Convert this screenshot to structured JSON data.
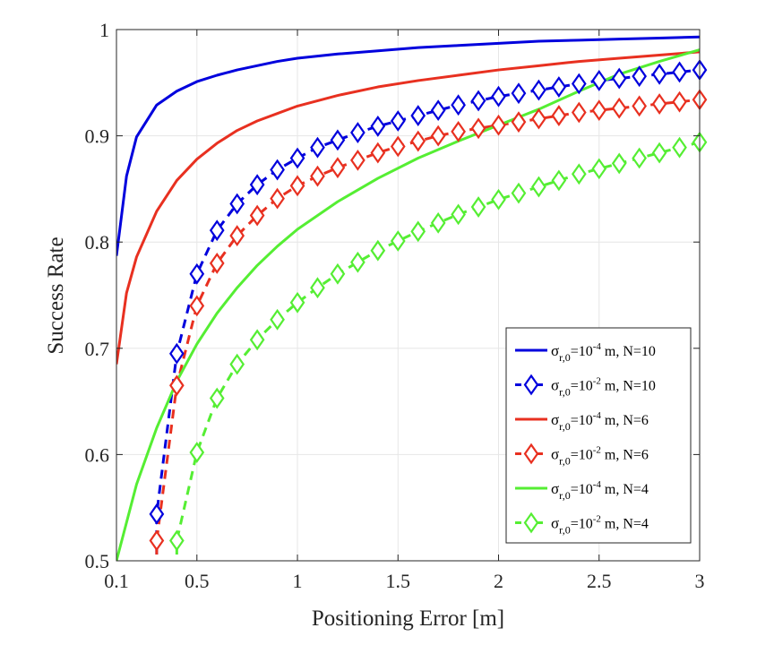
{
  "chart_data": {
    "type": "line",
    "title": "",
    "xlabel": "Positioning Error [m]",
    "ylabel": "Success Rate",
    "xlim": [
      0.1,
      3
    ],
    "ylim": [
      0.5,
      1
    ],
    "xticks": [
      0.1,
      0.5,
      1,
      1.5,
      2,
      2.5,
      3
    ],
    "xtick_labels": [
      "0.1",
      "0.5",
      "1",
      "1.5",
      "2",
      "2.5",
      "3"
    ],
    "yticks": [
      0.5,
      0.6,
      0.7,
      0.8,
      0.9,
      1
    ],
    "ytick_labels": [
      "0.5",
      "0.6",
      "0.7",
      "0.8",
      "0.9",
      "1"
    ],
    "grid": true,
    "legend_position": "bottom-right",
    "series": [
      {
        "name": "σr,0=10-4 m, N=10",
        "legend": {
          "sigma": "σ",
          "sub": "r,0",
          "base": "=10",
          "exp": "-4",
          "rest": " m, N=10"
        },
        "color": "#0000DD",
        "style": "solid",
        "marker": "none",
        "x": [
          0.1,
          0.15,
          0.2,
          0.3,
          0.4,
          0.5,
          0.6,
          0.7,
          0.8,
          0.9,
          1.0,
          1.2,
          1.4,
          1.6,
          1.8,
          2.0,
          2.2,
          2.4,
          2.6,
          2.8,
          3.0
        ],
        "y": [
          0.787,
          0.862,
          0.899,
          0.929,
          0.942,
          0.951,
          0.957,
          0.962,
          0.966,
          0.97,
          0.973,
          0.977,
          0.98,
          0.983,
          0.985,
          0.987,
          0.989,
          0.99,
          0.991,
          0.992,
          0.993
        ]
      },
      {
        "name": "σr,0=10-2 m, N=10",
        "legend": {
          "sigma": "σ",
          "sub": "r,0",
          "base": "=10",
          "exp": "-2",
          "rest": " m, N=10"
        },
        "color": "#0000DD",
        "style": "dashed",
        "marker": "diamond",
        "x": [
          0.3,
          0.4,
          0.5,
          0.6,
          0.7,
          0.8,
          0.9,
          1.0,
          1.1,
          1.2,
          1.3,
          1.4,
          1.5,
          1.6,
          1.7,
          1.8,
          1.9,
          2.0,
          2.1,
          2.2,
          2.3,
          2.4,
          2.5,
          2.6,
          2.7,
          2.8,
          2.9,
          3.0
        ],
        "y": [
          0.544,
          0.695,
          0.77,
          0.811,
          0.836,
          0.854,
          0.868,
          0.879,
          0.889,
          0.896,
          0.903,
          0.909,
          0.914,
          0.919,
          0.924,
          0.929,
          0.933,
          0.937,
          0.94,
          0.943,
          0.946,
          0.949,
          0.952,
          0.954,
          0.956,
          0.958,
          0.96,
          0.962
        ]
      },
      {
        "name": "σr,0=10-4 m, N=6",
        "legend": {
          "sigma": "σ",
          "sub": "r,0",
          "base": "=10",
          "exp": "-4",
          "rest": " m, N=6"
        },
        "color": "#E83020",
        "style": "solid",
        "marker": "none",
        "x": [
          0.1,
          0.15,
          0.2,
          0.3,
          0.4,
          0.5,
          0.6,
          0.7,
          0.8,
          0.9,
          1.0,
          1.2,
          1.4,
          1.6,
          1.8,
          2.0,
          2.2,
          2.4,
          2.6,
          2.8,
          3.0
        ],
        "y": [
          0.685,
          0.752,
          0.786,
          0.829,
          0.858,
          0.878,
          0.893,
          0.905,
          0.914,
          0.921,
          0.928,
          0.938,
          0.946,
          0.952,
          0.957,
          0.962,
          0.966,
          0.97,
          0.973,
          0.976,
          0.979
        ]
      },
      {
        "name": "σr,0=10-2 m, N=6",
        "legend": {
          "sigma": "σ",
          "sub": "r,0",
          "base": "=10",
          "exp": "-2",
          "rest": " m, N=6"
        },
        "color": "#E83020",
        "style": "dashed",
        "marker": "diamond",
        "x": [
          0.3,
          0.4,
          0.5,
          0.6,
          0.7,
          0.8,
          0.9,
          1.0,
          1.1,
          1.2,
          1.3,
          1.4,
          1.5,
          1.6,
          1.7,
          1.8,
          1.9,
          2.0,
          2.1,
          2.2,
          2.3,
          2.4,
          2.5,
          2.6,
          2.7,
          2.8,
          2.9,
          3.0
        ],
        "y": [
          0.519,
          0.665,
          0.74,
          0.78,
          0.806,
          0.825,
          0.841,
          0.853,
          0.862,
          0.87,
          0.877,
          0.884,
          0.89,
          0.895,
          0.9,
          0.904,
          0.907,
          0.91,
          0.913,
          0.916,
          0.919,
          0.922,
          0.924,
          0.926,
          0.928,
          0.93,
          0.932,
          0.934
        ]
      },
      {
        "name": "σr,0=10-4 m, N=4",
        "legend": {
          "sigma": "σ",
          "sub": "r,0",
          "base": "=10",
          "exp": "-4",
          "rest": " m, N=4"
        },
        "color": "#55EE33",
        "style": "solid",
        "marker": "none",
        "x": [
          0.1,
          0.2,
          0.3,
          0.4,
          0.5,
          0.6,
          0.7,
          0.8,
          0.9,
          1.0,
          1.2,
          1.4,
          1.6,
          1.8,
          2.0,
          2.2,
          2.4,
          2.6,
          2.8,
          3.0
        ],
        "y": [
          0.5,
          0.572,
          0.625,
          0.669,
          0.704,
          0.733,
          0.757,
          0.778,
          0.796,
          0.812,
          0.838,
          0.86,
          0.879,
          0.895,
          0.91,
          0.925,
          0.942,
          0.958,
          0.97,
          0.981
        ]
      },
      {
        "name": "σr,0=10-2 m, N=4",
        "legend": {
          "sigma": "σ",
          "sub": "r,0",
          "base": "=10",
          "exp": "-2",
          "rest": " m, N=4"
        },
        "color": "#55EE33",
        "style": "dashed",
        "marker": "diamond",
        "x": [
          0.4,
          0.5,
          0.6,
          0.7,
          0.8,
          0.9,
          1.0,
          1.1,
          1.2,
          1.3,
          1.4,
          1.5,
          1.6,
          1.7,
          1.8,
          1.9,
          2.0,
          2.1,
          2.2,
          2.3,
          2.4,
          2.5,
          2.6,
          2.7,
          2.8,
          2.9,
          3.0
        ],
        "y": [
          0.519,
          0.602,
          0.653,
          0.685,
          0.708,
          0.727,
          0.743,
          0.757,
          0.77,
          0.781,
          0.792,
          0.801,
          0.81,
          0.818,
          0.826,
          0.833,
          0.84,
          0.846,
          0.852,
          0.858,
          0.864,
          0.869,
          0.874,
          0.879,
          0.884,
          0.889,
          0.894
        ]
      }
    ]
  }
}
